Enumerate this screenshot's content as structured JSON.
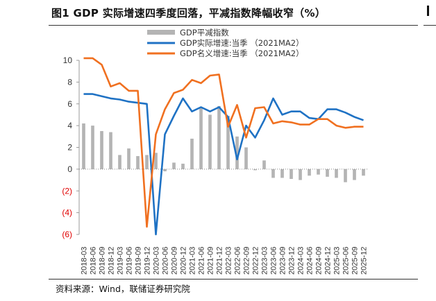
{
  "header": {
    "title": "图1  GDP 实际增速四季度回落，平减指数降幅收窄（%）",
    "source": "资料来源：Wind，联储证券研究院"
  },
  "chart_data": {
    "type": "bar+line",
    "categories": [
      "2018-03",
      "2018-06",
      "2018-09",
      "2018-12",
      "2019-03",
      "2019-06",
      "2019-09",
      "2019-12",
      "2020-03",
      "2020-06",
      "2020-09",
      "2020-12",
      "2021-03",
      "2021-06",
      "2021-09",
      "2021-12",
      "2022-03",
      "2022-06",
      "2022-09",
      "2022-12",
      "2023-03",
      "2023-06",
      "2023-09",
      "2023-12",
      "2024-03",
      "2024-06",
      "2024-09",
      "2024-12",
      "2025-03",
      "2025-06",
      "2025-09",
      "2025-12"
    ],
    "ylim": [
      -6,
      10
    ],
    "yticks": [
      {
        "value": 10,
        "label": "10"
      },
      {
        "value": 8,
        "label": "8"
      },
      {
        "value": 6,
        "label": "6"
      },
      {
        "value": 4,
        "label": "4"
      },
      {
        "value": 2,
        "label": "2"
      },
      {
        "value": 0,
        "label": "0"
      },
      {
        "value": -2,
        "label": "(2)"
      },
      {
        "value": -4,
        "label": "(4)"
      },
      {
        "value": -6,
        "label": "(6)"
      }
    ],
    "negative_tick_color": "#e00000",
    "grid": false,
    "legend_position": "top",
    "series": [
      {
        "name": "GDP平减指数",
        "kind": "bar",
        "color": "#b4b4b4",
        "values": [
          4.2,
          4.0,
          3.5,
          3.4,
          1.3,
          1.9,
          1.2,
          1.3,
          1.5,
          -0.2,
          0.6,
          0.5,
          2.8,
          5.6,
          5.0,
          5.8,
          4.9,
          3.0,
          2.0,
          -0.1,
          0.8,
          -0.8,
          -0.8,
          -0.9,
          -1.0,
          -0.6,
          -0.5,
          -0.7,
          -0.8,
          -1.2,
          -1.0,
          -0.6
        ]
      },
      {
        "name": "GDP实际增速:当季  （2021MA2）",
        "kind": "line",
        "color": "#1f72c4",
        "values": [
          6.9,
          6.9,
          6.7,
          6.5,
          6.4,
          6.2,
          6.1,
          6.0,
          -6.0,
          3.2,
          4.9,
          6.5,
          5.3,
          5.7,
          5.3,
          5.7,
          4.8,
          0.9,
          4.0,
          2.9,
          4.5,
          6.5,
          5.0,
          5.3,
          5.3,
          4.7,
          4.6,
          5.5,
          5.5,
          5.2,
          4.8,
          4.5
        ]
      },
      {
        "name": "GDP名义增速:当季  （2021MA2）",
        "kind": "line",
        "color": "#f07020",
        "values": [
          10.2,
          10.2,
          9.6,
          7.6,
          7.9,
          7.2,
          7.2,
          -5.3,
          3.2,
          5.5,
          7.0,
          7.3,
          8.2,
          7.9,
          8.6,
          8.7,
          3.9,
          5.9,
          2.9,
          5.6,
          5.7,
          4.2,
          4.4,
          4.3,
          4.1,
          4.1,
          4.6,
          4.6,
          4.0,
          3.8,
          3.9,
          3.9
        ]
      }
    ]
  }
}
